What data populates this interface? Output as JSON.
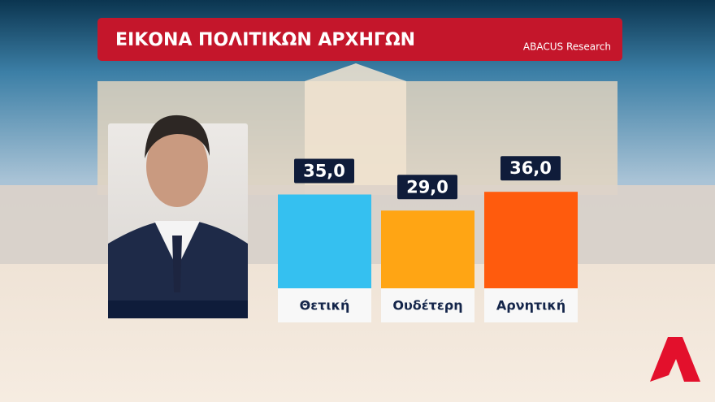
{
  "chart_data": {
    "type": "bar",
    "title": "ΕΙΚΟΝΑ ΠΟΛΙΤΙΚΩΝ ΑΡΧΗΓΩΝ",
    "source": "ABACUS Research",
    "categories": [
      "Θετική",
      "Ουδέτερη",
      "Αρνητική"
    ],
    "values": [
      35.0,
      29.0,
      36.0
    ],
    "value_labels": [
      "35,0",
      "29,0",
      "36,0"
    ],
    "colors": [
      "#35c0f0",
      "#ffa514",
      "#ff5b0d"
    ]
  }
}
